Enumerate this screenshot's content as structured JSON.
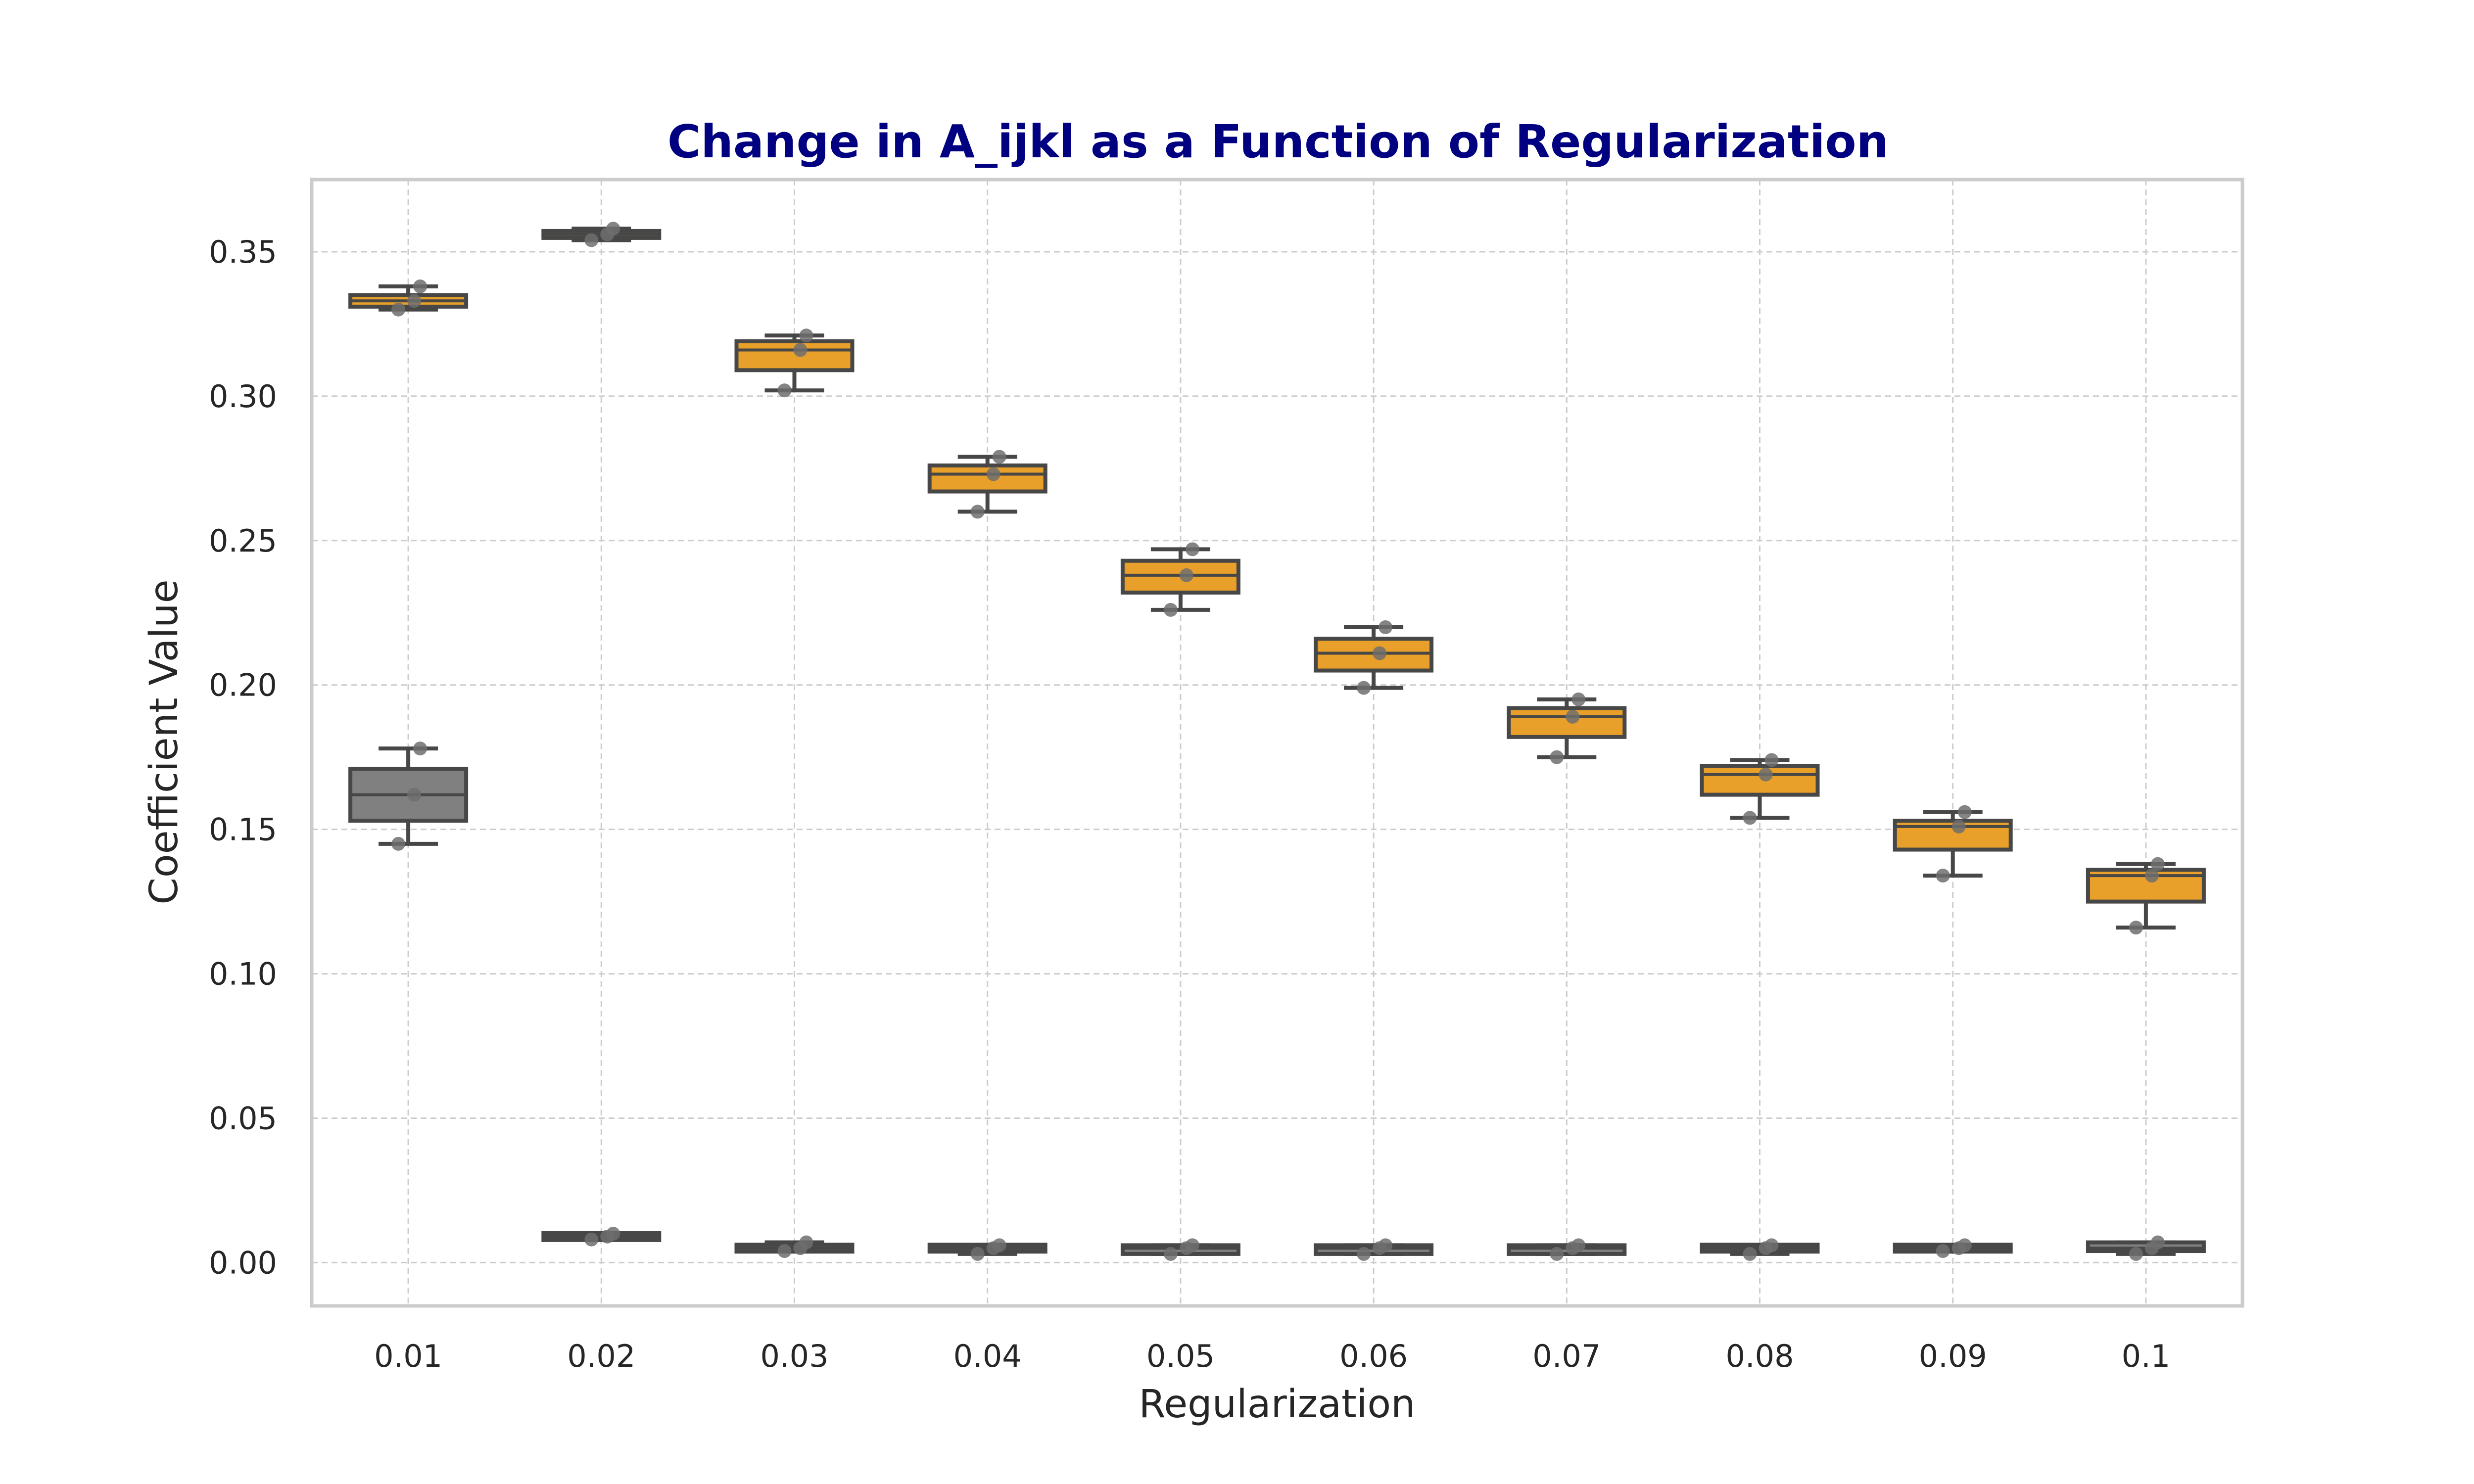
{
  "chart_data": {
    "type": "box",
    "title": "Change in A_ijkl as a Function of Regularization",
    "xlabel": "Regularization",
    "ylabel": "Coefficient Value",
    "categories": [
      "0.01",
      "0.02",
      "0.03",
      "0.04",
      "0.05",
      "0.06",
      "0.07",
      "0.08",
      "0.09",
      "0.1"
    ],
    "ylim": [
      -0.015,
      0.375
    ],
    "yticks": [
      "0.00",
      "0.05",
      "0.10",
      "0.15",
      "0.20",
      "0.25",
      "0.30",
      "0.35"
    ],
    "yticks_values": [
      0.0,
      0.05,
      0.1,
      0.15,
      0.2,
      0.25,
      0.3,
      0.35
    ],
    "grid": true,
    "colors": {
      "orange": "#e8a02a",
      "gray": "#808080",
      "title": "#000080"
    },
    "series": [
      {
        "color": "#808080",
        "boxes": [
          {
            "category": "0.01",
            "min": 0.145,
            "q1": 0.153,
            "median": 0.162,
            "q3": 0.171,
            "max": 0.178,
            "points": [
              0.145,
              0.162,
              0.178
            ]
          }
        ]
      },
      {
        "color": "#e8a02a",
        "boxes": [
          {
            "category": "0.01",
            "min": 0.33,
            "q1": 0.331,
            "median": 0.333,
            "q3": 0.335,
            "max": 0.338,
            "points": [
              0.33,
              0.333,
              0.338
            ]
          },
          {
            "category": "0.02",
            "min": 0.354,
            "q1": 0.355,
            "median": 0.356,
            "q3": 0.357,
            "max": 0.358,
            "points": [
              0.354,
              0.356,
              0.358
            ]
          },
          {
            "category": "0.03",
            "min": 0.302,
            "q1": 0.309,
            "median": 0.316,
            "q3": 0.319,
            "max": 0.321,
            "points": [
              0.302,
              0.316,
              0.321
            ]
          },
          {
            "category": "0.04",
            "min": 0.26,
            "q1": 0.267,
            "median": 0.273,
            "q3": 0.276,
            "max": 0.279,
            "points": [
              0.26,
              0.273,
              0.279
            ]
          },
          {
            "category": "0.05",
            "min": 0.226,
            "q1": 0.232,
            "median": 0.238,
            "q3": 0.243,
            "max": 0.247,
            "points": [
              0.226,
              0.238,
              0.247
            ]
          },
          {
            "category": "0.06",
            "min": 0.199,
            "q1": 0.205,
            "median": 0.211,
            "q3": 0.216,
            "max": 0.22,
            "points": [
              0.199,
              0.211,
              0.22
            ]
          },
          {
            "category": "0.07",
            "min": 0.175,
            "q1": 0.182,
            "median": 0.189,
            "q3": 0.192,
            "max": 0.195,
            "points": [
              0.175,
              0.189,
              0.195
            ]
          },
          {
            "category": "0.08",
            "min": 0.154,
            "q1": 0.162,
            "median": 0.169,
            "q3": 0.172,
            "max": 0.174,
            "points": [
              0.154,
              0.169,
              0.174
            ]
          },
          {
            "category": "0.09",
            "min": 0.134,
            "q1": 0.143,
            "median": 0.151,
            "q3": 0.153,
            "max": 0.156,
            "points": [
              0.134,
              0.151,
              0.156
            ]
          },
          {
            "category": "0.1",
            "min": 0.116,
            "q1": 0.125,
            "median": 0.134,
            "q3": 0.136,
            "max": 0.138,
            "points": [
              0.116,
              0.134,
              0.138
            ]
          }
        ]
      },
      {
        "color": "#808080",
        "boxes": [
          {
            "category": "0.02",
            "min": 0.008,
            "q1": 0.008,
            "median": 0.009,
            "q3": 0.01,
            "max": 0.01,
            "points": [
              0.008,
              0.009,
              0.01
            ]
          },
          {
            "category": "0.03",
            "min": 0.004,
            "q1": 0.004,
            "median": 0.005,
            "q3": 0.006,
            "max": 0.007,
            "points": [
              0.004,
              0.005,
              0.007
            ]
          },
          {
            "category": "0.04",
            "min": 0.003,
            "q1": 0.004,
            "median": 0.005,
            "q3": 0.006,
            "max": 0.006,
            "points": [
              0.003,
              0.005,
              0.006
            ]
          },
          {
            "category": "0.05",
            "min": 0.003,
            "q1": 0.003,
            "median": 0.005,
            "q3": 0.006,
            "max": 0.006,
            "points": [
              0.003,
              0.005,
              0.006
            ]
          },
          {
            "category": "0.06",
            "min": 0.003,
            "q1": 0.003,
            "median": 0.005,
            "q3": 0.006,
            "max": 0.006,
            "points": [
              0.003,
              0.005,
              0.006
            ]
          },
          {
            "category": "0.07",
            "min": 0.003,
            "q1": 0.003,
            "median": 0.005,
            "q3": 0.006,
            "max": 0.006,
            "points": [
              0.003,
              0.005,
              0.006
            ]
          },
          {
            "category": "0.08",
            "min": 0.003,
            "q1": 0.004,
            "median": 0.005,
            "q3": 0.006,
            "max": 0.006,
            "points": [
              0.003,
              0.005,
              0.006
            ]
          },
          {
            "category": "0.09",
            "min": 0.004,
            "q1": 0.004,
            "median": 0.005,
            "q3": 0.006,
            "max": 0.006,
            "points": [
              0.004,
              0.005,
              0.006
            ]
          },
          {
            "category": "0.1",
            "min": 0.003,
            "q1": 0.004,
            "median": 0.005,
            "q3": 0.007,
            "max": 0.007,
            "points": [
              0.003,
              0.005,
              0.007
            ]
          }
        ]
      }
    ]
  }
}
